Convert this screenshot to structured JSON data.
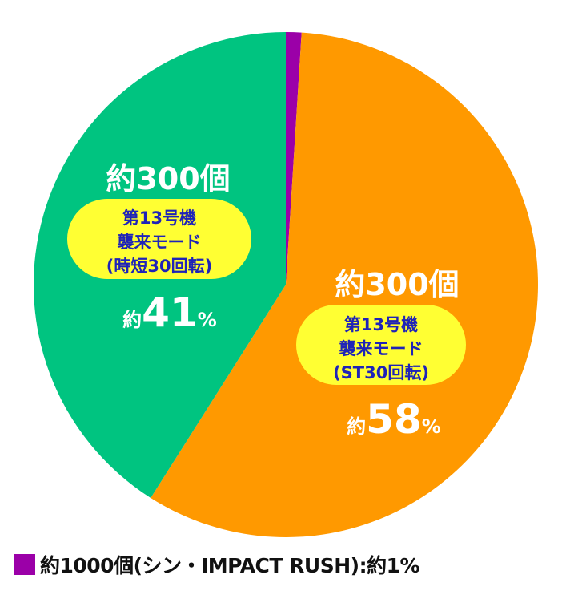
{
  "chart_data": {
    "type": "pie",
    "slices": [
      {
        "key": "shin",
        "percent": 1,
        "color": "#9b00a8"
      },
      {
        "key": "st",
        "percent": 58,
        "color": "#ff9900",
        "count_label": "約300個",
        "mode_lines": [
          "第13号機",
          "襲来モード",
          "(ST30回転)"
        ],
        "pct_prefix": "約",
        "pct_value": "58",
        "pct_sign": "%"
      },
      {
        "key": "jitan",
        "percent": 41,
        "color": "#00c480",
        "count_label": "約300個",
        "mode_lines": [
          "第13号機",
          "襲来モード",
          "(時短30回転)"
        ],
        "pct_prefix": "約",
        "pct_value": "41",
        "pct_sign": "%"
      }
    ],
    "legend": {
      "text": "約1000個(シン・IMPACT RUSH):約1%",
      "color": "#9b00a8"
    },
    "label_box_color": "#ffff33"
  }
}
